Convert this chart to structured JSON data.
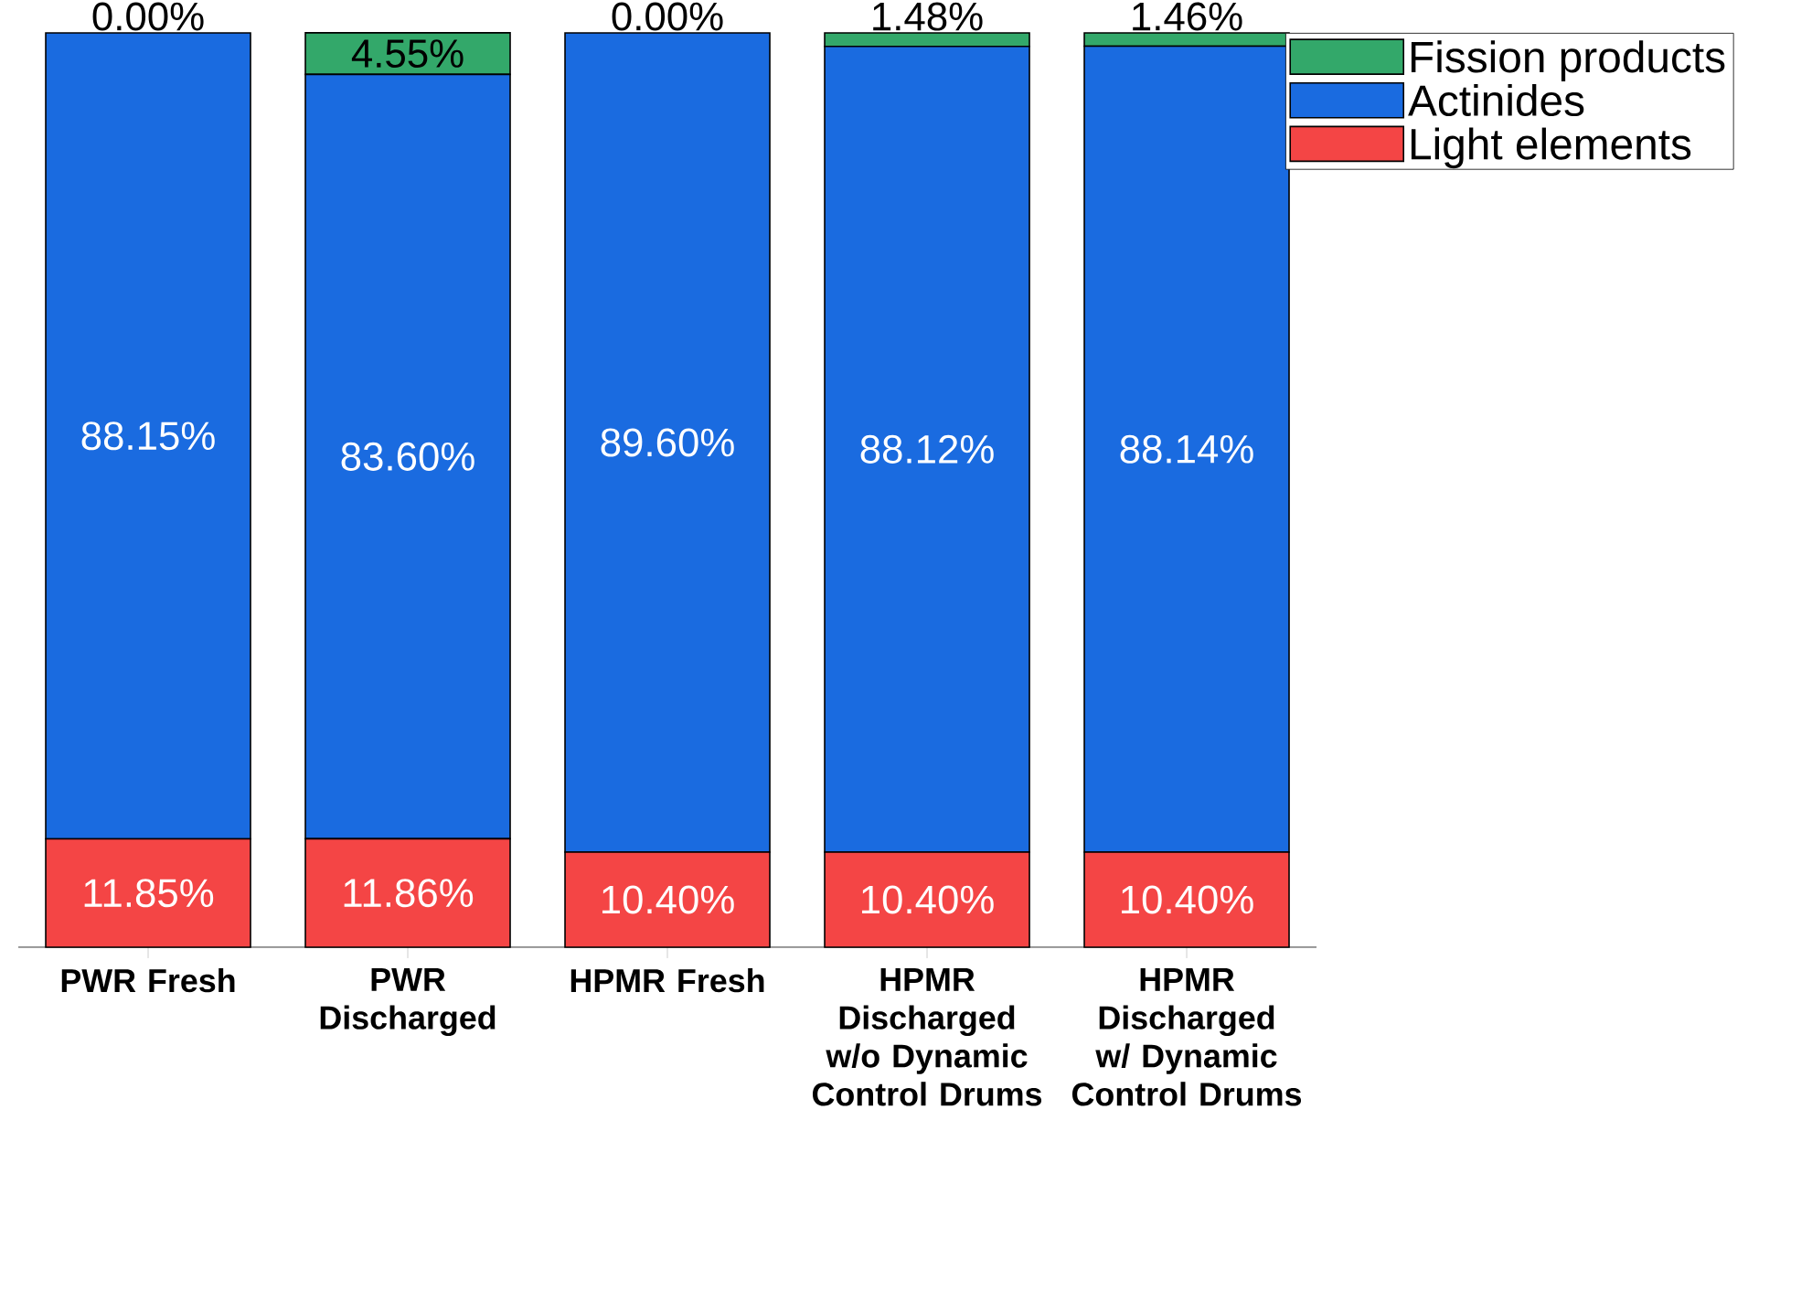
{
  "chart_data": {
    "type": "bar",
    "stacked": true,
    "categories": [
      "PWR Fresh",
      "PWR Discharged",
      "HPMR Fresh",
      "HPMR Discharged w/o Dynamic Control Drums",
      "HPMR Discharged w/ Dynamic Control Drums"
    ],
    "series": [
      {
        "name": "Light elements",
        "color": "#f44545",
        "values": [
          11.85,
          11.86,
          10.4,
          10.4,
          10.4
        ],
        "value_labels": [
          "11.85%",
          "11.86%",
          "10.40%",
          "10.40%",
          "10.40%"
        ]
      },
      {
        "name": "Actinides",
        "color": "#1a6be0",
        "values": [
          88.15,
          83.6,
          89.6,
          88.12,
          88.14
        ],
        "value_labels": [
          "88.15%",
          "83.60%",
          "89.60%",
          "88.12%",
          "88.14%"
        ]
      },
      {
        "name": "Fission products",
        "color": "#33a86a",
        "values": [
          0.0,
          4.55,
          0.0,
          1.48,
          1.46
        ],
        "value_labels": [
          "0.00%",
          "4.55%",
          "0.00%",
          "1.48%",
          "1.46%"
        ]
      }
    ],
    "legend": "top right"
  }
}
